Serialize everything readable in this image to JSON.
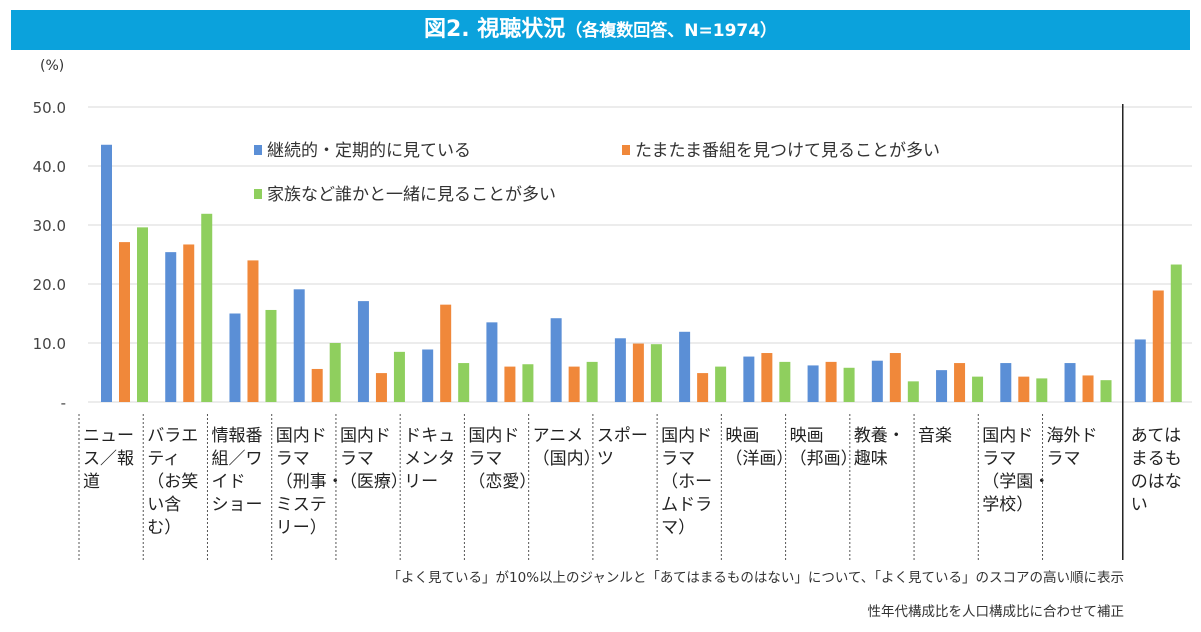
{
  "title": {
    "main": "図2. 視聴状況",
    "sub": "（各複数回答、N=1974）"
  },
  "chart_data": {
    "type": "bar",
    "ylabel": "(%)",
    "ylim": [
      0,
      50
    ],
    "yticks": [
      "-",
      "10.0",
      "20.0",
      "30.0",
      "40.0",
      "50.0"
    ],
    "grid": true,
    "legend_position": "top-left inside plot",
    "colors": [
      "#5b8fd6",
      "#f0883a",
      "#8fcf5e"
    ],
    "categories": [
      [
        "ニュー",
        "ス／報",
        "道"
      ],
      [
        "バラエ",
        "ティ",
        "（お笑",
        "い含",
        "む）"
      ],
      [
        "情報番",
        "組／ワ",
        "イド",
        "ショー"
      ],
      [
        "国内ド",
        "ラマ",
        "（刑事・",
        "ミステ",
        "リー）"
      ],
      [
        "国内ド",
        "ラマ",
        "（医療）"
      ],
      [
        "ドキュ",
        "メンタ",
        "リー"
      ],
      [
        "国内ド",
        "ラマ",
        "（恋愛）"
      ],
      [
        "アニメ",
        "（国内）"
      ],
      [
        "スポー",
        "ツ"
      ],
      [
        "国内ド",
        "ラマ",
        "（ホー",
        "ムドラ",
        "マ）"
      ],
      [
        "映画",
        "（洋画）"
      ],
      [
        "映画",
        "（邦画）"
      ],
      [
        "教養・",
        "趣味"
      ],
      [
        "音楽"
      ],
      [
        "国内ド",
        "ラマ",
        "（学園・",
        "学校）"
      ],
      [
        "海外ド",
        "ラマ"
      ],
      [
        "あては",
        "まるも",
        "のはな",
        "い"
      ]
    ],
    "series": [
      {
        "name": "継続的・定期的に見ている",
        "values": [
          43.6,
          25.4,
          15.0,
          19.1,
          17.1,
          8.9,
          13.5,
          14.2,
          10.8,
          11.9,
          7.7,
          6.2,
          7.0,
          5.4,
          6.6,
          6.6,
          10.6
        ]
      },
      {
        "name": "たまたま番組を見つけて見ることが多い",
        "values": [
          27.1,
          26.7,
          24.0,
          5.6,
          4.9,
          16.5,
          6.0,
          6.0,
          9.9,
          4.9,
          8.3,
          6.8,
          8.3,
          6.6,
          4.3,
          4.5,
          18.9
        ]
      },
      {
        "name": "家族など誰かと一緒に見ることが多い",
        "values": [
          29.6,
          31.9,
          15.6,
          10.0,
          8.5,
          6.6,
          6.4,
          6.8,
          9.8,
          6.0,
          6.8,
          5.8,
          3.5,
          4.3,
          4.0,
          3.7,
          23.3
        ]
      }
    ]
  },
  "notes": [
    "「よく見ている」が10%以上のジャンルと「あてはまるものはない」について、「よく見ている」のスコアの高い順に表示",
    "性年代構成比を人口構成比に合わせて補正"
  ]
}
